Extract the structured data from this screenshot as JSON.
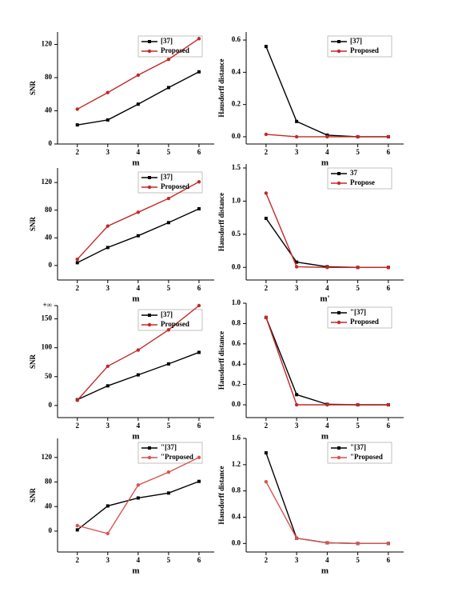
{
  "chart_data": [
    {
      "type": "line",
      "x": [
        2,
        3,
        4,
        5,
        6
      ],
      "xticks": [
        2,
        3,
        4,
        5,
        6
      ],
      "xlim": [
        1.35,
        6.5
      ],
      "xlabel": "m",
      "ylabel": "SNR",
      "ylim": [
        0,
        135
      ],
      "yticks": [
        0,
        40,
        80,
        120
      ],
      "series": [
        {
          "name": "[37]",
          "color": "#000000",
          "values": [
            23,
            29,
            48,
            68,
            87
          ]
        },
        {
          "name": "Proposed",
          "color": "#c62828",
          "values": [
            42,
            62,
            83,
            102,
            127
          ]
        }
      ]
    },
    {
      "type": "line",
      "x": [
        2,
        3,
        4,
        5,
        6
      ],
      "xticks": [
        2,
        3,
        4,
        5,
        6
      ],
      "xlim": [
        1.35,
        6.5
      ],
      "xlabel": "m",
      "ylabel": "Hausdorff distance",
      "ylim": [
        -0.045,
        0.65
      ],
      "yticks": [
        {
          "value": 0,
          "label": "0.0"
        },
        0.2,
        0.4,
        0.6
      ],
      "series": [
        {
          "name": "[37]",
          "color": "#000000",
          "values": [
            0.56,
            0.095,
            0.01,
            0,
            0
          ]
        },
        {
          "name": "Proposed",
          "color": "#c62828",
          "values": [
            0.015,
            0,
            0,
            0,
            0
          ]
        }
      ]
    },
    {
      "type": "line",
      "x": [
        2,
        3,
        4,
        5,
        6
      ],
      "xticks": [
        2,
        3,
        4,
        5,
        6
      ],
      "xlim": [
        1.35,
        6.5
      ],
      "xlabel": "m",
      "ylabel": "SNR",
      "ylim": [
        -21,
        141
      ],
      "yticks": [
        0,
        40,
        80,
        120
      ],
      "series": [
        {
          "name": "[37]",
          "color": "#000000",
          "values": [
            4,
            26,
            43,
            62,
            82
          ]
        },
        {
          "name": "Proposed",
          "color": "#c62828",
          "values": [
            9,
            57,
            77,
            97,
            121
          ]
        }
      ]
    },
    {
      "type": "line",
      "x": [
        2,
        3,
        4,
        5,
        6
      ],
      "xticks": [
        2,
        3,
        4,
        5,
        6
      ],
      "xlim": [
        1.35,
        6.5
      ],
      "xlabel": "m'",
      "ylabel": "Hausdorff distance",
      "ylim": [
        -0.19,
        1.56
      ],
      "yticks": [
        {
          "value": 0,
          "label": "0.0"
        },
        0.5,
        {
          "value": 1,
          "label": "1.0"
        },
        1.5
      ],
      "series": [
        {
          "name": "37",
          "color": "#000000",
          "values": [
            0.74,
            0.08,
            0.01,
            0,
            0
          ]
        },
        {
          "name": "Propose",
          "color": "#c62828",
          "values": [
            1.12,
            0.01,
            0,
            0,
            0
          ]
        }
      ]
    },
    {
      "type": "line",
      "x": [
        2,
        3,
        4,
        5,
        6
      ],
      "xticks": [
        2,
        3,
        4,
        5,
        6
      ],
      "xlim": [
        1.35,
        6.5
      ],
      "xlabel": "m",
      "ylabel": "SNR",
      "ylim": [
        -21,
        173
      ],
      "yticks": [
        0,
        50,
        100,
        150,
        {
          "value": 173,
          "label": "+∞"
        }
      ],
      "series": [
        {
          "name": "[37]",
          "color": "#000000",
          "values": [
            10,
            34,
            53,
            72,
            92
          ]
        },
        {
          "name": "Proposed",
          "color": "#c62828",
          "values": [
            9,
            68,
            96,
            131,
            173
          ]
        }
      ]
    },
    {
      "type": "line",
      "x": [
        2,
        3,
        4,
        5,
        6
      ],
      "xticks": [
        2,
        3,
        4,
        5,
        6
      ],
      "xlim": [
        1.35,
        6.5
      ],
      "xlabel": "m",
      "ylabel": "Hausdorff distance",
      "ylim": [
        -0.126,
        1
      ],
      "yticks": [
        {
          "value": 0,
          "label": "0.0"
        },
        0.2,
        0.4,
        0.6,
        0.8,
        {
          "value": 1,
          "label": "1.0"
        }
      ],
      "series": [
        {
          "name": "\"[37]",
          "color": "#000000",
          "values": [
            0.86,
            0.1,
            0.005,
            0,
            0
          ]
        },
        {
          "name": "Proposed",
          "color": "#c62828",
          "values": [
            0.86,
            0,
            0,
            0,
            0
          ]
        }
      ]
    },
    {
      "type": "line",
      "x": [
        2,
        3,
        4,
        5,
        6
      ],
      "xticks": [
        2,
        3,
        4,
        5,
        6
      ],
      "xlim": [
        1.35,
        6.5
      ],
      "xlabel": "m",
      "ylabel": "SNR",
      "ylim": [
        -34,
        151
      ],
      "yticks": [
        0,
        40,
        80,
        120
      ],
      "series": [
        {
          "name": "\"[37]",
          "color": "#000000",
          "values": [
            2,
            41,
            54,
            62,
            81
          ]
        },
        {
          "name": "\"Proposed",
          "color": "#d9534f",
          "values": [
            9,
            -4,
            75,
            96,
            120
          ]
        }
      ]
    },
    {
      "type": "line",
      "x": [
        2,
        3,
        4,
        5,
        6
      ],
      "xticks": [
        2,
        3,
        4,
        5,
        6
      ],
      "xlim": [
        1.35,
        6.5
      ],
      "xlabel": "m",
      "ylabel": "Hausdorff distance",
      "ylim": [
        -0.13,
        1.6
      ],
      "yticks": [
        {
          "value": 0,
          "label": "0.0"
        },
        0.4,
        0.8,
        1.2,
        1.6
      ],
      "series": [
        {
          "name": "\"[37]",
          "color": "#000000",
          "values": [
            1.38,
            0.08,
            0.01,
            0,
            0
          ]
        },
        {
          "name": "\"Proposed",
          "color": "#d9534f",
          "values": [
            0.94,
            0.08,
            0.01,
            0,
            0
          ]
        }
      ]
    }
  ]
}
